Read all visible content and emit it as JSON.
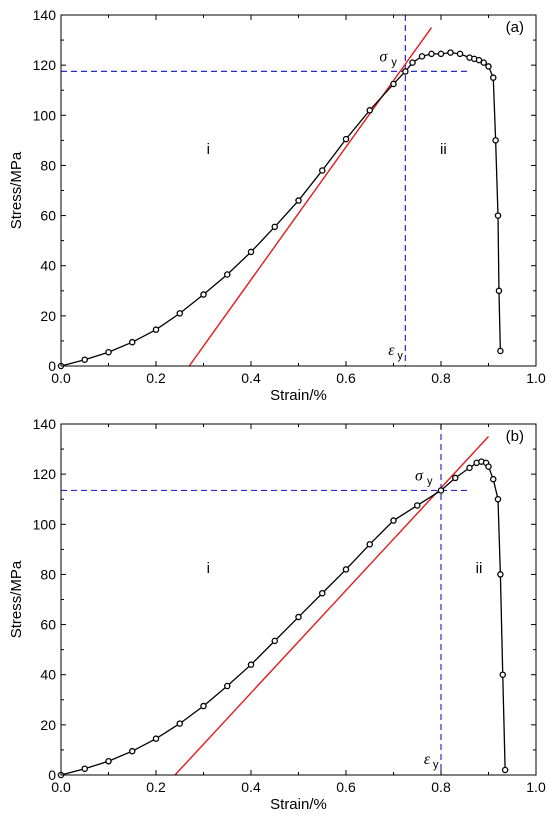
{
  "chart_data": [
    {
      "type": "scatter",
      "panel_label": "(a)",
      "xlabel": "Strain/%",
      "ylabel": "Stress/MPa",
      "xlim": [
        0.0,
        1.0
      ],
      "ylim": [
        0,
        140
      ],
      "x_ticks": [
        "0.0",
        "0.2",
        "0.4",
        "0.6",
        "0.8",
        "1.0"
      ],
      "y_ticks": [
        "0",
        "20",
        "40",
        "60",
        "80",
        "100",
        "120",
        "140"
      ],
      "grid": false,
      "region_labels": [
        "i",
        "ii"
      ],
      "yield_strain": 0.725,
      "yield_stress": 117.5,
      "yield_stress_label": "σ",
      "yield_strain_label": "ε",
      "yield_subscript": "y",
      "fit_line": {
        "color": "#e41a1c",
        "x": [
          0.27,
          0.78
        ],
        "y": [
          0,
          135
        ]
      },
      "guide_color": "#2b2bd6",
      "series": [
        {
          "color": "#000000",
          "x": [
            0.0,
            0.05,
            0.1,
            0.15,
            0.2,
            0.25,
            0.3,
            0.35,
            0.4,
            0.45,
            0.5,
            0.55,
            0.6,
            0.65,
            0.7,
            0.725,
            0.74,
            0.76,
            0.78,
            0.8,
            0.82,
            0.84,
            0.86,
            0.87,
            0.88,
            0.89,
            0.9,
            0.91,
            0.915,
            0.92,
            0.922,
            0.925
          ],
          "y": [
            0,
            2.5,
            5.5,
            9.5,
            14.5,
            21,
            28.5,
            36.5,
            45.5,
            55.5,
            66,
            78,
            90.5,
            102,
            112.5,
            117.5,
            121,
            123.5,
            124.5,
            124.5,
            125,
            124.5,
            123,
            122.5,
            122,
            121,
            119.5,
            115,
            90,
            60,
            30,
            6
          ]
        }
      ]
    },
    {
      "type": "scatter",
      "panel_label": "(b)",
      "xlabel": "Strain/%",
      "ylabel": "Stress/MPa",
      "xlim": [
        0.0,
        1.0
      ],
      "ylim": [
        0,
        140
      ],
      "x_ticks": [
        "0.0",
        "0.2",
        "0.4",
        "0.6",
        "0.8",
        "1.0"
      ],
      "y_ticks": [
        "0",
        "20",
        "40",
        "60",
        "80",
        "100",
        "120",
        "140"
      ],
      "grid": false,
      "region_labels": [
        "i",
        "ii"
      ],
      "yield_strain": 0.8,
      "yield_stress": 113.5,
      "yield_stress_label": "σ",
      "yield_strain_label": "ε",
      "yield_subscript": "y",
      "fit_line": {
        "color": "#e41a1c",
        "x": [
          0.24,
          0.9
        ],
        "y": [
          0,
          135
        ]
      },
      "guide_color": "#2b2bd6",
      "series": [
        {
          "color": "#000000",
          "x": [
            0.0,
            0.05,
            0.1,
            0.15,
            0.2,
            0.25,
            0.3,
            0.35,
            0.4,
            0.45,
            0.5,
            0.55,
            0.6,
            0.65,
            0.7,
            0.75,
            0.8,
            0.83,
            0.86,
            0.875,
            0.885,
            0.895,
            0.9,
            0.91,
            0.92,
            0.925,
            0.93,
            0.935
          ],
          "y": [
            0,
            2.5,
            5.5,
            9.5,
            14.5,
            20.5,
            27.5,
            35.5,
            44,
            53.5,
            63,
            72.5,
            82,
            92,
            101.5,
            107.5,
            113.5,
            118.5,
            122.5,
            124.5,
            125,
            124.5,
            123,
            118,
            110,
            80,
            40,
            2
          ]
        }
      ]
    }
  ]
}
